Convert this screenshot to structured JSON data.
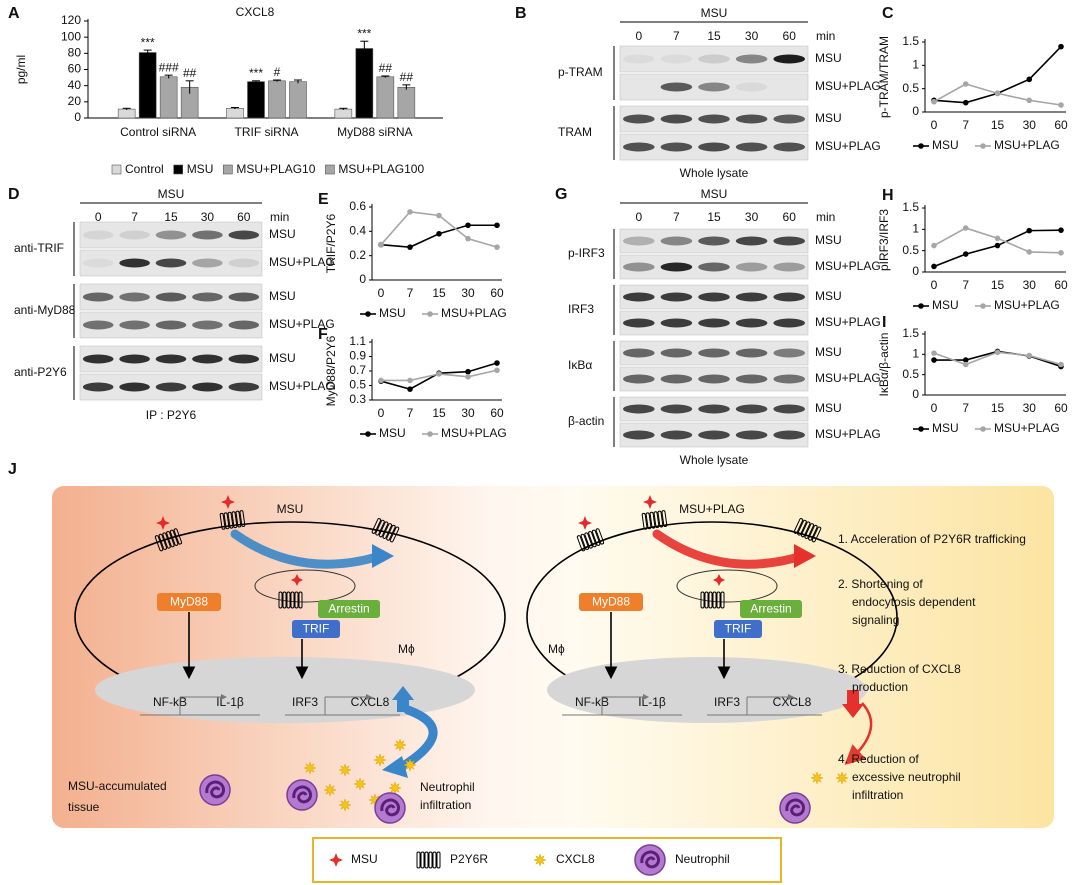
{
  "chart_data": [
    {
      "panel": "A",
      "type": "bar",
      "title": "CXCL8",
      "y_label": "pg/ml",
      "categories": [
        "Control siRNA",
        "TRIF siRNA",
        "MyD88 siRNA"
      ],
      "series": [
        {
          "name": "Control",
          "color": "#d9d9d9",
          "values": [
            11,
            12,
            11
          ],
          "errors": [
            1,
            1,
            1
          ],
          "significance": [
            null,
            null,
            null
          ]
        },
        {
          "name": "MSU",
          "color": "#000000",
          "values": [
            81,
            45,
            86
          ],
          "errors": [
            3,
            1,
            9
          ],
          "significance": [
            "***",
            "***",
            "***"
          ]
        },
        {
          "name": "MSU+PLAG10",
          "color": "#a6a6a6",
          "values": [
            51,
            46,
            51
          ],
          "errors": [
            2,
            1,
            1
          ],
          "significance": [
            "###",
            "#",
            "##"
          ]
        },
        {
          "name": "MSU+PLAG100",
          "color": "#a6a6a6",
          "values": [
            38,
            45,
            38
          ],
          "errors": [
            8,
            2,
            3
          ],
          "significance": [
            "##",
            null,
            "##"
          ]
        }
      ],
      "ylim": [
        0,
        120
      ],
      "yticks": [
        0,
        20,
        40,
        60,
        80,
        100,
        120
      ]
    },
    {
      "panel": "C",
      "type": "line",
      "y_label": "p-TRAM/TRAM",
      "categories": [
        "0",
        "7",
        "15",
        "30",
        "60"
      ],
      "series": [
        {
          "name": "MSU",
          "color": "#000000",
          "values": [
            0.25,
            0.2,
            0.4,
            0.7,
            1.4
          ]
        },
        {
          "name": "MSU+PLAG",
          "color": "#a6a6a6",
          "values": [
            0.22,
            0.6,
            0.4,
            0.25,
            0.15
          ]
        }
      ],
      "ylim": [
        0,
        1.5
      ],
      "yticks": [
        0,
        0.5,
        1,
        1.5
      ]
    },
    {
      "panel": "E",
      "type": "line",
      "y_label": "TRIF/P2Y6",
      "categories": [
        "0",
        "7",
        "15",
        "30",
        "60"
      ],
      "series": [
        {
          "name": "MSU",
          "color": "#000000",
          "values": [
            0.29,
            0.27,
            0.38,
            0.45,
            0.45
          ]
        },
        {
          "name": "MSU+PLAG",
          "color": "#a6a6a6",
          "values": [
            0.29,
            0.56,
            0.53,
            0.34,
            0.27
          ]
        }
      ],
      "ylim": [
        0,
        0.6
      ],
      "yticks": [
        0,
        0.2,
        0.4,
        0.6
      ]
    },
    {
      "panel": "F",
      "type": "line",
      "y_label": "MyD88/P2Y6",
      "categories": [
        "0",
        "7",
        "15",
        "30",
        "60"
      ],
      "series": [
        {
          "name": "MSU",
          "color": "#000000",
          "values": [
            0.56,
            0.45,
            0.67,
            0.69,
            0.81
          ]
        },
        {
          "name": "MSU+PLAG",
          "color": "#a6a6a6",
          "values": [
            0.57,
            0.57,
            0.66,
            0.62,
            0.71
          ]
        }
      ],
      "ylim": [
        0.3,
        1.1
      ],
      "yticks": [
        0.3,
        0.5,
        0.7,
        0.9,
        1.1
      ]
    },
    {
      "panel": "H",
      "type": "line",
      "y_label": "pIRF3/IRF3",
      "categories": [
        "0",
        "7",
        "15",
        "30",
        "60"
      ],
      "series": [
        {
          "name": "MSU",
          "color": "#000000",
          "values": [
            0.13,
            0.42,
            0.62,
            0.97,
            0.98
          ]
        },
        {
          "name": "MSU+PLAG",
          "color": "#a6a6a6",
          "values": [
            0.62,
            1.03,
            0.79,
            0.47,
            0.45
          ]
        }
      ],
      "ylim": [
        0,
        1.5
      ],
      "yticks": [
        0,
        0.5,
        1,
        1.5
      ]
    },
    {
      "panel": "I",
      "type": "line",
      "y_label": "IκBα/β-actin",
      "categories": [
        "0",
        "7",
        "15",
        "30",
        "60"
      ],
      "series": [
        {
          "name": "MSU",
          "color": "#000000",
          "values": [
            0.86,
            0.86,
            1.07,
            0.96,
            0.7
          ]
        },
        {
          "name": "MSU+PLAG",
          "color": "#a6a6a6",
          "values": [
            1.03,
            0.75,
            1.05,
            0.97,
            0.75
          ]
        }
      ],
      "ylim": [
        0,
        1.5
      ],
      "yticks": [
        0,
        0.5,
        1,
        1.5
      ]
    }
  ],
  "blots": [
    {
      "panel": "B",
      "header": "MSU",
      "times": [
        "0",
        "7",
        "15",
        "30",
        "60"
      ],
      "unit": "min",
      "rows": [
        {
          "label": "p-TRAM",
          "conditions": [
            "MSU",
            "MSU+PLAG"
          ]
        },
        {
          "label": "TRAM",
          "conditions": [
            "MSU",
            "MSU+PLAG"
          ]
        }
      ],
      "footer": "Whole lysate"
    },
    {
      "panel": "D",
      "header": "MSU",
      "times": [
        "0",
        "7",
        "15",
        "30",
        "60"
      ],
      "unit": "min",
      "rows": [
        {
          "label": "anti-TRIF",
          "conditions": [
            "MSU",
            "MSU+PLAG"
          ]
        },
        {
          "label": "anti-MyD88",
          "conditions": [
            "MSU",
            "MSU+PLAG"
          ]
        },
        {
          "label": "anti-P2Y6",
          "conditions": [
            "MSU",
            "MSU+PLAG"
          ]
        }
      ],
      "footer": "IP : P2Y6"
    },
    {
      "panel": "G",
      "header": "MSU",
      "times": [
        "0",
        "7",
        "15",
        "30",
        "60"
      ],
      "unit": "min",
      "rows": [
        {
          "label": "p-IRF3",
          "conditions": [
            "MSU",
            "MSU+PLAG"
          ]
        },
        {
          "label": "IRF3",
          "conditions": [
            "MSU",
            "MSU+PLAG"
          ]
        },
        {
          "label": "IκBα",
          "conditions": [
            "MSU",
            "MSU+PLAG"
          ]
        },
        {
          "label": "β-actin",
          "conditions": [
            "MSU",
            "MSU+PLAG"
          ]
        }
      ],
      "footer": "Whole lysate"
    }
  ],
  "diagram": {
    "panel": "J",
    "left": {
      "title": "MSU",
      "myd88": "MyD88",
      "arrestin": "Arrestin",
      "trif": "TRIF",
      "cell": "Mϕ",
      "nfkb": "NF-kB",
      "il1b": "IL-1β",
      "irf3": "IRF3",
      "cxcl8": "CXCL8",
      "tissue": [
        "MSU-accumulated",
        "tissue"
      ],
      "outcome": [
        "Neutrophil",
        "infiltration"
      ]
    },
    "right": {
      "title": "MSU+PLAG",
      "myd88": "MyD88",
      "arrestin": "Arrestin",
      "trif": "TRIF",
      "cell": "Mϕ",
      "nfkb": "NF-kB",
      "il1b": "IL-1β",
      "irf3": "IRF3",
      "cxcl8": "CXCL8",
      "steps": [
        [
          "1. Acceleration of P2Y6R trafficking"
        ],
        [
          "2. Shortening of",
          "endocytosis dependent",
          "signaling"
        ],
        [
          "3. Reduction of CXCL8",
          "production"
        ],
        [
          "4. Reduction of",
          "excessive neutrophil",
          "infiltration"
        ]
      ]
    },
    "legend": [
      "MSU",
      "P2Y6R",
      "CXCL8",
      "Neutrophil"
    ]
  }
}
